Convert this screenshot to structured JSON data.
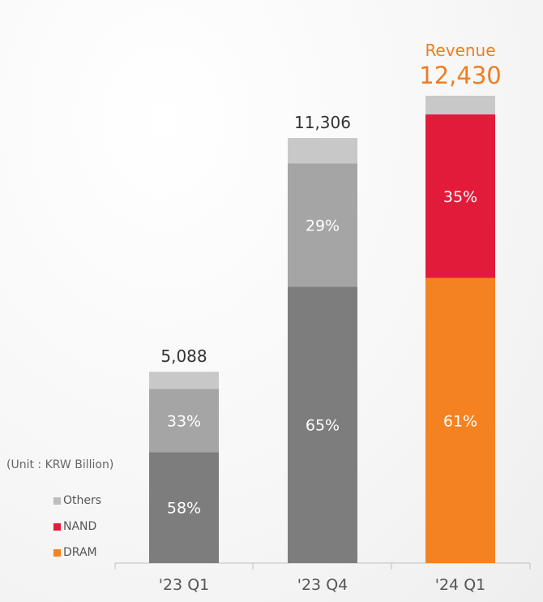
{
  "unit_label": "(Unit : KRW Billion)",
  "revenue_label": "Revenue",
  "legend": [
    {
      "label": "Others",
      "color": "#bdbdbd"
    },
    {
      "label": "NAND",
      "color": "#e31b3a"
    },
    {
      "label": "DRAM",
      "color": "#f58220"
    }
  ],
  "chart_data": {
    "type": "bar",
    "stacked": true,
    "categories": [
      "'23 Q1",
      "'23 Q4",
      "'24 Q1"
    ],
    "totals": [
      5088,
      11306,
      12430
    ],
    "total_labels": [
      "5,088",
      "11,306",
      "12,430"
    ],
    "series": [
      {
        "name": "DRAM",
        "share_labels": [
          "58%",
          "65%",
          "61%"
        ],
        "values": [
          2951,
          7349,
          7582
        ]
      },
      {
        "name": "NAND",
        "share_labels": [
          "33%",
          "29%",
          "35%"
        ],
        "values": [
          1679,
          3279,
          4351
        ]
      },
      {
        "name": "Others",
        "share_labels": [
          "",
          "",
          ""
        ],
        "values": [
          458,
          678,
          497
        ]
      }
    ],
    "series_colors": [
      [
        "#7d7d7d",
        "#7d7d7d",
        "#f58220"
      ],
      [
        "#a5a5a5",
        "#a5a5a5",
        "#e31b3a"
      ],
      [
        "#c8c8c8",
        "#c8c8c8",
        "#c8c8c8"
      ]
    ],
    "ylim": [
      0,
      12430
    ],
    "legend_position": "bottom-left"
  }
}
